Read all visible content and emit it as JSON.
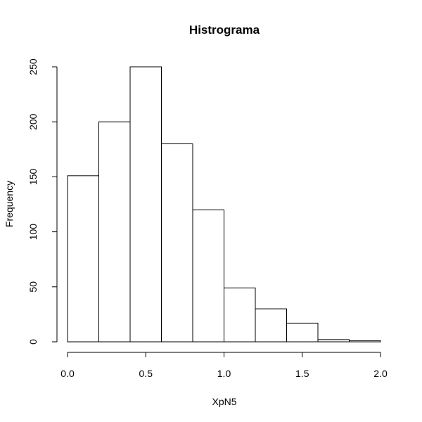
{
  "chart_data": {
    "type": "bar",
    "title": "Histrograma",
    "xlabel": "XpN5",
    "ylabel": "Frequency",
    "bins": [
      {
        "from": 0.0,
        "to": 0.2,
        "count": 151
      },
      {
        "from": 0.2,
        "to": 0.4,
        "count": 200
      },
      {
        "from": 0.4,
        "to": 0.6,
        "count": 250
      },
      {
        "from": 0.6,
        "to": 0.8,
        "count": 180
      },
      {
        "from": 0.8,
        "to": 1.0,
        "count": 120
      },
      {
        "from": 1.0,
        "to": 1.2,
        "count": 49
      },
      {
        "from": 1.2,
        "to": 1.4,
        "count": 30
      },
      {
        "from": 1.4,
        "to": 1.6,
        "count": 17
      },
      {
        "from": 1.6,
        "to": 1.8,
        "count": 2
      },
      {
        "from": 1.8,
        "to": 2.0,
        "count": 1
      }
    ],
    "xlim": [
      0,
      2.0
    ],
    "ylim": [
      0,
      250
    ],
    "x_ticks": [
      0.0,
      0.5,
      1.0,
      1.5,
      2.0
    ],
    "x_tick_labels": [
      "0.0",
      "0.5",
      "1.0",
      "1.5",
      "2.0"
    ],
    "y_ticks": [
      0,
      50,
      100,
      150,
      200,
      250
    ],
    "y_tick_labels": [
      "0",
      "50",
      "100",
      "150",
      "200",
      "250"
    ],
    "grid": false,
    "legend": "none",
    "bar_fill": "#ffffff",
    "bar_stroke": "#000000"
  }
}
